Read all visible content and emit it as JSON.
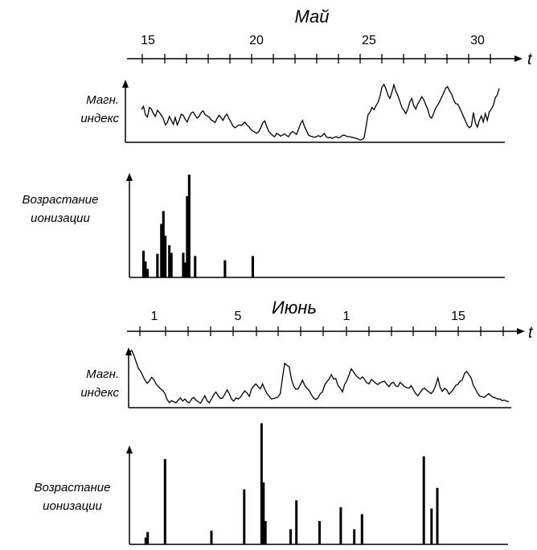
{
  "chart_data": [
    {
      "type": "line",
      "month": "Май",
      "axis_label": "t",
      "x_ticks": [
        "15",
        "20",
        "25",
        "30"
      ],
      "ylabel": [
        "Магн.",
        "индекс"
      ],
      "series": [
        {
          "values": [
            5.8,
            6.4,
            4.9,
            4.5,
            6.2,
            5.9,
            5.1,
            4.6,
            5.7,
            5.3,
            4.8,
            4.2,
            3.1,
            3.5,
            4.6,
            3.9,
            3.2,
            4.4,
            3.1,
            3.9,
            5.0,
            4.8,
            4.1,
            3.6,
            4.5,
            5.2,
            5.4,
            4.8,
            4.3,
            4.6,
            5.3,
            5.6,
            4.9,
            4.7,
            4.5,
            4.0,
            3.8,
            3.5,
            4.2,
            4.8,
            4.4,
            3.9,
            4.6,
            5.0,
            4.2,
            3.6,
            2.9,
            2.6,
            2.8,
            3.1,
            3.0,
            3.2,
            3.6,
            3.1,
            2.8,
            2.3,
            2.0,
            1.8,
            1.6,
            1.9,
            2.6,
            3.5,
            3.8,
            2.8,
            2.0,
            1.6,
            1.2,
            1.0,
            1.6,
            1.4,
            1.1,
            1.3,
            1.5,
            1.2,
            1.0,
            1.6,
            1.9,
            1.7,
            1.4,
            2.3,
            3.3,
            3.9,
            2.8,
            2.1,
            1.3,
            1.1,
            1.0,
            0.9,
            1.0,
            1.2,
            1.0,
            1.2,
            1.6,
            1.0,
            0.8,
            0.9,
            0.7,
            0.9,
            1.0,
            0.8,
            0.9,
            1.2,
            1.3,
            1.1,
            1.0,
            1.0,
            0.9,
            0.8,
            0.7,
            0.6,
            0.4,
            0.5,
            0.8,
            2.8,
            4.9,
            5.4,
            6.2,
            5.8,
            6.5,
            7.1,
            8.2,
            9.8,
            10.3,
            9.5,
            8.4,
            7.8,
            8.9,
            10.2,
            9.1,
            8.3,
            7.3,
            6.2,
            5.7,
            5.1,
            5.9,
            7.2,
            7.8,
            6.5,
            5.9,
            6.8,
            7.4,
            8.1,
            7.6,
            6.7,
            5.9,
            4.6,
            4.3,
            5.1,
            6.1,
            6.6,
            7.2,
            8.0,
            8.7,
            9.6,
            9.9,
            9.1,
            8.6,
            7.6,
            6.9,
            6.8,
            6.2,
            5.4,
            4.6,
            3.8,
            3.0,
            2.6,
            2.9,
            5.3,
            3.5,
            2.7,
            3.9,
            4.7,
            3.6,
            5.1,
            3.9,
            5.4,
            5.9,
            6.5,
            7.9,
            8.4,
            9.6
          ]
        }
      ]
    },
    {
      "type": "bar",
      "ylabel": [
        "Возрастание",
        "ионизации"
      ],
      "values": [
        0,
        0,
        2.5,
        1.5,
        0.8,
        0,
        0,
        0,
        0,
        2.2,
        0,
        5.0,
        6.2,
        3.9,
        0,
        3.0,
        2.3,
        0,
        0,
        0,
        0,
        0,
        2.3,
        1.4,
        7.6,
        9.6,
        0,
        0,
        2.0,
        0,
        0,
        0,
        0,
        0,
        0,
        0,
        0,
        0,
        0,
        0,
        0,
        0,
        0,
        1.6,
        0,
        0,
        0,
        0,
        0,
        0,
        0,
        0,
        0,
        0,
        0,
        0,
        0,
        2.0,
        0,
        0,
        0,
        0,
        0,
        0,
        0,
        0,
        0,
        0,
        0,
        0,
        0,
        0,
        0,
        0,
        0,
        0,
        0,
        0,
        0,
        0,
        0,
        0,
        0,
        0,
        0,
        0,
        0,
        0,
        0,
        0,
        0,
        0,
        0,
        0,
        0,
        0,
        0,
        0,
        0,
        0,
        0,
        0,
        0,
        0,
        0,
        0,
        0,
        0,
        0,
        0,
        0,
        0,
        0,
        0,
        0,
        0,
        0,
        0,
        0,
        0,
        0,
        0,
        0,
        0,
        0,
        0,
        0,
        0,
        0,
        0,
        0,
        0,
        0,
        0,
        0,
        0,
        0,
        0,
        0,
        0,
        0,
        0,
        0,
        0,
        0,
        0,
        0,
        0,
        0,
        0,
        0,
        0,
        0,
        0,
        0,
        0,
        0,
        0,
        0,
        0,
        0,
        0,
        0,
        0,
        0,
        0,
        0,
        0,
        0,
        0,
        0,
        0,
        0,
        0,
        0,
        0,
        0,
        0,
        0,
        0
      ]
    },
    {
      "type": "line",
      "month": "Июнь",
      "axis_label": "t",
      "x_ticks": [
        "1",
        "5",
        "1",
        "15"
      ],
      "ylabel": [
        "Магн.",
        "индекс"
      ],
      "series": [
        {
          "values": [
            10.1,
            10.6,
            9.7,
            8.5,
            7.3,
            6.8,
            5.9,
            5.1,
            4.5,
            4.9,
            5.6,
            5.2,
            4.4,
            3.9,
            3.5,
            3.2,
            2.6,
            1.5,
            0.9,
            1.3,
            1.1,
            0.9,
            1.4,
            1.8,
            1.2,
            1.6,
            1.1,
            0.9,
            1.6,
            1.9,
            1.4,
            1.1,
            0.8,
            1.5,
            2.2,
            1.3,
            0.9,
            1.6,
            2.4,
            2.9,
            2.2,
            1.7,
            1.8,
            2.5,
            3.3,
            2.6,
            1.6,
            1.2,
            1.8,
            1.6,
            1.9,
            2.6,
            3.1,
            2.7,
            2.1,
            3.4,
            4.0,
            4.4,
            3.9,
            3.5,
            4.4,
            3.4,
            2.6,
            2.1,
            1.6,
            1.7,
            1.8,
            2.0,
            2.6,
            5.6,
            8.2,
            7.8,
            7.6,
            5.3,
            4.0,
            3.4,
            3.5,
            4.2,
            5.1,
            4.1,
            3.6,
            3.2,
            2.4,
            1.8,
            1.5,
            1.8,
            2.6,
            2.9,
            4.2,
            4.8,
            5.3,
            6.1,
            5.3,
            5.4,
            4.1,
            3.6,
            2.9,
            4.3,
            5.0,
            6.1,
            7.2,
            6.6,
            6.0,
            5.6,
            5.3,
            5.7,
            5.2,
            4.6,
            4.4,
            5.2,
            4.9,
            4.5,
            4.3,
            4.6,
            4.8,
            4.9,
            4.3,
            3.9,
            4.5,
            4.7,
            4.0,
            3.9,
            4.7,
            4.3,
            3.9,
            3.7,
            3.6,
            4.1,
            3.3,
            2.6,
            2.2,
            2.8,
            3.4,
            3.6,
            3.2,
            2.9,
            2.6,
            3.1,
            4.1,
            5.5,
            3.8,
            3.0,
            3.6,
            3.3,
            2.5,
            2.9,
            3.4,
            4.1,
            4.3,
            4.9,
            5.1,
            6.3,
            6.7,
            6.1,
            5.5,
            4.1,
            3.4,
            2.6,
            2.1,
            2.0,
            1.9,
            2.3,
            2.6,
            2.2,
            1.9,
            1.8,
            1.6,
            1.6,
            1.3,
            1.4,
            1.2,
            1.1
          ]
        }
      ]
    },
    {
      "type": "bar",
      "ylabel": [
        "Возрастание",
        "ионизации"
      ],
      "values": [
        0,
        0,
        0.5,
        0.9,
        0,
        0,
        0,
        0,
        0,
        0,
        0,
        0,
        6.2,
        0,
        0,
        0,
        0,
        0,
        0,
        0,
        0,
        0,
        0,
        0,
        0,
        0,
        0,
        0,
        0,
        0,
        0,
        0,
        0,
        0,
        0,
        0,
        1.0,
        0,
        0,
        0,
        0,
        0,
        0,
        0,
        0,
        0,
        0,
        0,
        0,
        0,
        0,
        0,
        0,
        4.0,
        0,
        0,
        0,
        0,
        0,
        0,
        0,
        0,
        8.8,
        4.5,
        1.7,
        0,
        0,
        0,
        0,
        0,
        0,
        0,
        0,
        0,
        0,
        0,
        0,
        1.1,
        0,
        0,
        3.2,
        0,
        0,
        0,
        0,
        0,
        0,
        0,
        0,
        0,
        0,
        0,
        1.7,
        0,
        0,
        0,
        0,
        0,
        0,
        0,
        0,
        0,
        0,
        2.7,
        0,
        0,
        0,
        0,
        0,
        0,
        1.1,
        0,
        0,
        0,
        2.2,
        0,
        0,
        0,
        0,
        0,
        0,
        0,
        0,
        0,
        0,
        0,
        0,
        0,
        0,
        0,
        0,
        0,
        0,
        0,
        0,
        0,
        0,
        0,
        0,
        0,
        0,
        0,
        0,
        0,
        0,
        0,
        6.4,
        0,
        0,
        0,
        2.6,
        0,
        0,
        4.1,
        0,
        0,
        0,
        0,
        0,
        0,
        0,
        0,
        0,
        0,
        0,
        0,
        0,
        0,
        0,
        0,
        0,
        0,
        0,
        0,
        0,
        0,
        0,
        0,
        0,
        0,
        0,
        0,
        0,
        0
      ]
    }
  ]
}
